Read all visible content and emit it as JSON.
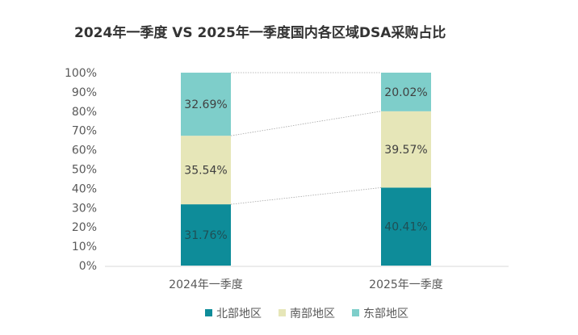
{
  "chart_data": {
    "type": "bar",
    "stacked": true,
    "title": "2024年一季度 VS 2025年一季度国内各区域DSA采购占比",
    "categories": [
      "2024年一季度",
      "2025年一季度"
    ],
    "series": [
      {
        "name": "北部地区",
        "values": [
          31.76,
          40.41
        ],
        "color": "#0E8C99"
      },
      {
        "name": "南部地区",
        "values": [
          35.54,
          39.57
        ],
        "color": "#E6E6B8"
      },
      {
        "name": "东部地区",
        "values": [
          32.69,
          20.02
        ],
        "color": "#7ECECA"
      }
    ],
    "data_labels": [
      [
        "31.76%",
        "40.41%"
      ],
      [
        "35.54%",
        "39.57%"
      ],
      [
        "32.69%",
        "20.02%"
      ]
    ],
    "ylim": [
      0,
      100
    ],
    "yticks": [
      "0%",
      "10%",
      "20%",
      "30%",
      "40%",
      "50%",
      "60%",
      "70%",
      "80%",
      "90%",
      "100%"
    ],
    "xlabel": "",
    "ylabel": "",
    "grid": false,
    "series_connector_lines": true,
    "legend_position": "bottom"
  }
}
